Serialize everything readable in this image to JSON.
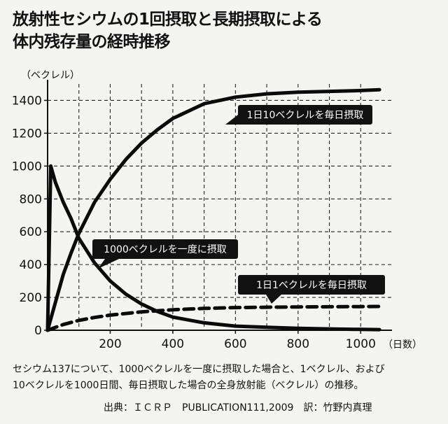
{
  "title": {
    "line1": "放射性セシウムの1回摂取と長期摂取による",
    "line2": "体内残存量の経時推移"
  },
  "caption": {
    "line1": "セシウム137について、1000ベクレルを一度に摂取した場合と、1ベクレル、および",
    "line2": "10ベクレルを1000日間、毎日摂取した場合の全身放射能（ベクレル）の推移。"
  },
  "source": "出典：ＩＣＲＰ　PUBLICATION111,2009　訳：竹野内真理",
  "chart_data": {
    "type": "line",
    "ylabel": "（ベクレル）",
    "xlabel": "（日数）",
    "ylim": [
      0,
      1500
    ],
    "xlim": [
      0,
      1100
    ],
    "y_ticks": [
      0,
      200,
      400,
      600,
      800,
      1000,
      1200,
      1400
    ],
    "x_ticks": [
      200,
      400,
      600,
      800,
      1000
    ],
    "grid": true,
    "series": [
      {
        "name": "1日10ベクレルを毎日摂取",
        "style": "solid",
        "x": [
          0,
          25,
          50,
          75,
          100,
          150,
          200,
          250,
          300,
          350,
          400,
          500,
          600,
          700,
          800,
          900,
          1000,
          1060
        ],
        "y": [
          0,
          170,
          340,
          470,
          590,
          780,
          920,
          1040,
          1140,
          1220,
          1290,
          1380,
          1420,
          1440,
          1450,
          1455,
          1460,
          1465
        ]
      },
      {
        "name": "1000ベクレルを一度に摂取",
        "style": "solid",
        "x": [
          0,
          10,
          25,
          50,
          75,
          100,
          150,
          200,
          250,
          300,
          350,
          400,
          500,
          600,
          700,
          800,
          900,
          1000,
          1060
        ],
        "y": [
          0,
          1000,
          900,
          780,
          680,
          560,
          410,
          300,
          220,
          160,
          115,
          80,
          45,
          25,
          18,
          12,
          8,
          5,
          4
        ]
      },
      {
        "name": "1日1ベクレルを毎日摂取",
        "style": "dashed",
        "x": [
          0,
          50,
          100,
          150,
          200,
          300,
          400,
          500,
          600,
          700,
          800,
          900,
          1000,
          1060
        ],
        "y": [
          0,
          35,
          60,
          78,
          92,
          112,
          125,
          133,
          138,
          140,
          142,
          143,
          144,
          145
        ]
      }
    ],
    "annotations": [
      {
        "text": "1日10ベクレルを毎日摂取",
        "series": 0
      },
      {
        "text": "1000ベクレルを一度に摂取",
        "series": 1
      },
      {
        "text": "1日1ベクレルを毎日摂取",
        "series": 2
      }
    ]
  }
}
